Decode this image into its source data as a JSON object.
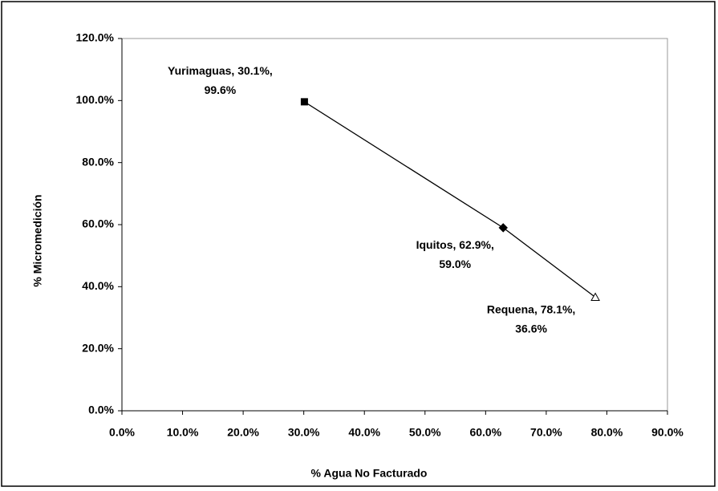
{
  "chart_data": {
    "type": "scatter",
    "x_label": "% Agua No Facturado",
    "y_label": "% Micromedición",
    "x": [
      30.1,
      62.9,
      78.1
    ],
    "values": [
      99.6,
      59.0,
      36.6
    ],
    "value_labels": [
      "Yurimaguas, 30.1%, 99.6%",
      "Iquitos, 62.9%, 59.0%",
      "Requena, 78.1%, 36.6%"
    ],
    "markers": [
      "square",
      "diamond",
      "triangle"
    ],
    "color": "#000000",
    "line": true,
    "xlim": [
      0,
      90
    ],
    "xticks": [
      {
        "value": 0,
        "label": "0.0%"
      },
      {
        "value": 10,
        "label": "10.0%"
      },
      {
        "value": 20,
        "label": "20.0%"
      },
      {
        "value": 30,
        "label": "30.0%"
      },
      {
        "value": 40,
        "label": "40.0%"
      },
      {
        "value": 50,
        "label": "50.0%"
      },
      {
        "value": 60,
        "label": "60.0%"
      },
      {
        "value": 70,
        "label": "70.0%"
      },
      {
        "value": 80,
        "label": "80.0%"
      },
      {
        "value": 90,
        "label": "90.0%"
      }
    ],
    "ylim": [
      0,
      120
    ],
    "yticks": [
      {
        "value": 0,
        "label": "0.0%"
      },
      {
        "value": 20,
        "label": "20.0%"
      },
      {
        "value": 40,
        "label": "40.0%"
      },
      {
        "value": 60,
        "label": "60.0%"
      },
      {
        "value": 80,
        "label": "80.0%"
      },
      {
        "value": 100,
        "label": "100.0%"
      },
      {
        "value": 120,
        "label": "120.0%"
      }
    ],
    "grid": false
  }
}
